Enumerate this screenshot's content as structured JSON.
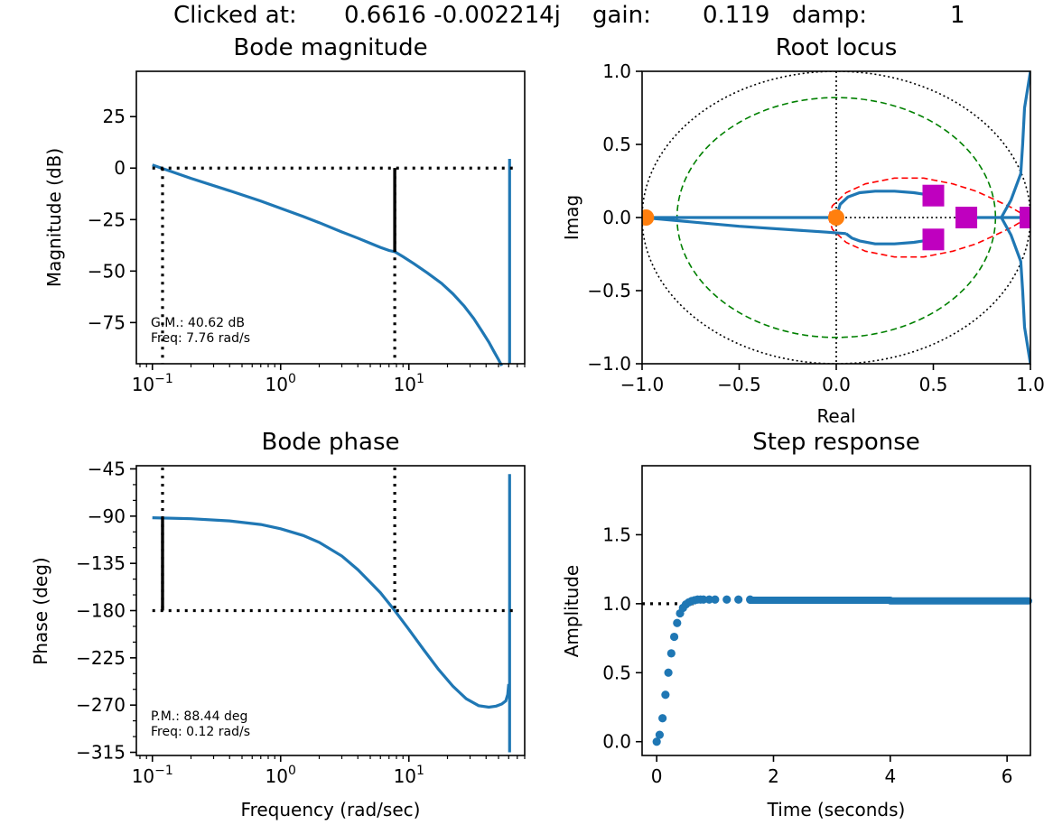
{
  "header": {
    "clicked_label": "Clicked at:",
    "clicked_value": "0.6616 -0.002214j",
    "gain_label": "gain:",
    "gain_value": "0.119",
    "damp_label": "damp:",
    "damp_value": "1"
  },
  "chart_data": [
    {
      "id": "bode_magnitude",
      "type": "line",
      "title": "Bode magnitude",
      "xlabel": "",
      "ylabel": "Magnitude (dB)",
      "xscale": "log",
      "xlim": [
        0.075,
        80
      ],
      "ylim": [
        -95,
        47
      ],
      "yticks": [
        {
          "v": 25,
          "label": "25"
        },
        {
          "v": 0,
          "label": "0"
        },
        {
          "v": -25,
          "label": "−25"
        },
        {
          "v": -50,
          "label": "−50"
        },
        {
          "v": -75,
          "label": "−75"
        }
      ],
      "xticks": [
        {
          "v": 0.1,
          "label": "10",
          "sup": "−1"
        },
        {
          "v": 1,
          "label": "10",
          "sup": "0"
        },
        {
          "v": 10,
          "label": "10",
          "sup": "1"
        }
      ],
      "series": [
        {
          "name": "magnitude",
          "x": [
            0.1,
            0.2,
            0.4,
            0.7,
            1.0,
            1.5,
            2.0,
            3.0,
            4.0,
            5.0,
            6.0,
            7.0,
            7.76,
            9.0,
            11.0,
            14.0,
            18.0,
            22.0,
            27.0,
            32.0,
            37.0,
            42.0,
            46.0,
            50.0,
            53.0
          ],
          "y": [
            1.5,
            -5,
            -11,
            -16,
            -19.5,
            -23.5,
            -26.5,
            -31,
            -34,
            -36.5,
            -38.5,
            -40,
            -40.62,
            -43,
            -46.5,
            -51,
            -56,
            -61,
            -67,
            -73,
            -79,
            -84.5,
            -89,
            -93,
            -96
          ]
        }
      ],
      "resonance_line": {
        "x": 61,
        "y_top": 4.5,
        "y_bottom": -95
      },
      "reference_lines": [
        {
          "orientation": "h",
          "value": 0,
          "style": "dotted"
        },
        {
          "orientation": "v",
          "value": 0.12,
          "style": "dotted"
        },
        {
          "orientation": "v",
          "value": 7.76,
          "style": "dotted"
        }
      ],
      "margin_bar": {
        "x": 7.76,
        "y_from": 0,
        "y_to": -40.62
      },
      "annotation": {
        "line1": "G.M.: 40.62 dB",
        "line2": "Freq: 7.76 rad/s"
      }
    },
    {
      "id": "root_locus",
      "type": "line",
      "title": "Root locus",
      "xlabel": "Real",
      "ylabel": "Imag",
      "xlim": [
        -1.0,
        1.0
      ],
      "ylim": [
        -1.0,
        1.0
      ],
      "xticks": [
        {
          "v": -1.0,
          "label": "−1.0"
        },
        {
          "v": -0.5,
          "label": "−0.5"
        },
        {
          "v": 0.0,
          "label": "0.0"
        },
        {
          "v": 0.5,
          "label": "0.5"
        },
        {
          "v": 1.0,
          "label": "1.0"
        }
      ],
      "yticks": [
        {
          "v": 1.0,
          "label": "1.0"
        },
        {
          "v": 0.5,
          "label": "0.5"
        },
        {
          "v": 0.0,
          "label": "0.0"
        },
        {
          "v": -0.5,
          "label": "−0.5"
        },
        {
          "v": -1.0,
          "label": "−1.0"
        }
      ],
      "unit_circle": {
        "radius": 1.0,
        "style": "dotted black"
      },
      "green_circle": {
        "radius": 0.82,
        "style": "dashed green"
      },
      "red_contour": {
        "x": [
          -0.04,
          -0.02,
          0.05,
          0.15,
          0.3,
          0.45,
          0.6,
          0.72,
          0.82,
          0.9,
          0.95,
          0.97,
          0.95,
          0.9,
          0.82,
          0.72,
          0.6,
          0.45,
          0.3,
          0.15,
          0.05,
          -0.02,
          -0.04
        ],
        "y": [
          0.0,
          0.08,
          0.17,
          0.23,
          0.27,
          0.27,
          0.23,
          0.18,
          0.12,
          0.07,
          0.03,
          0.0,
          -0.03,
          -0.07,
          -0.12,
          -0.18,
          -0.23,
          -0.27,
          -0.27,
          -0.23,
          -0.17,
          -0.08,
          0.0
        ]
      },
      "branches": [
        {
          "name": "real-axis-left",
          "x": [
            -0.97,
            0.0
          ],
          "y": [
            0.0,
            0.0
          ]
        },
        {
          "name": "lower-left",
          "x": [
            -0.97,
            -0.5,
            -0.05,
            0.05
          ],
          "y": [
            -0.003,
            -0.06,
            -0.1,
            -0.11
          ]
        },
        {
          "name": "upper",
          "x": [
            0.0,
            0.02,
            0.06,
            0.12,
            0.2,
            0.3,
            0.4,
            0.5
          ],
          "y": [
            0.0,
            0.09,
            0.14,
            0.17,
            0.18,
            0.18,
            0.17,
            0.15
          ]
        },
        {
          "name": "lower",
          "x": [
            0.05,
            0.08,
            0.12,
            0.2,
            0.3,
            0.4,
            0.5
          ],
          "y": [
            -0.11,
            -0.14,
            -0.16,
            -0.18,
            -0.18,
            -0.17,
            -0.15
          ]
        },
        {
          "name": "real-axis-right",
          "x": [
            0.67,
            1.0
          ],
          "y": [
            0.0,
            0.0
          ]
        },
        {
          "name": "right-lobe",
          "x": [
            1.0,
            0.97,
            0.96,
            0.95,
            0.9,
            0.85,
            0.9,
            0.95,
            0.96,
            0.97,
            1.0
          ],
          "y": [
            1.0,
            0.75,
            0.5,
            0.3,
            0.12,
            0.0,
            -0.12,
            -0.3,
            -0.5,
            -0.75,
            -1.0
          ]
        }
      ],
      "poles": {
        "x": [
          -0.98,
          0.0
        ],
        "y": [
          0.0,
          0.0
        ],
        "color": "#ff7f0e"
      },
      "selected": {
        "x": [
          0.5,
          0.5,
          0.67,
          1.0
        ],
        "y": [
          0.15,
          -0.15,
          0.0,
          0.0
        ],
        "color": "#bf00bf"
      }
    },
    {
      "id": "bode_phase",
      "type": "line",
      "title": "Bode phase",
      "xlabel": "Frequency (rad/sec)",
      "ylabel": "Phase (deg)",
      "xscale": "log",
      "xlim": [
        0.075,
        80
      ],
      "ylim": [
        -318,
        -42
      ],
      "yticks": [
        {
          "v": -45,
          "label": "−45"
        },
        {
          "v": -90,
          "label": "−90"
        },
        {
          "v": -135,
          "label": "−135"
        },
        {
          "v": -180,
          "label": "−180"
        },
        {
          "v": -225,
          "label": "−225"
        },
        {
          "v": -270,
          "label": "−270"
        },
        {
          "v": -315,
          "label": "−315"
        }
      ],
      "xticks": [
        {
          "v": 0.1,
          "label": "10",
          "sup": "−1"
        },
        {
          "v": 1,
          "label": "10",
          "sup": "0"
        },
        {
          "v": 10,
          "label": "10",
          "sup": "1"
        }
      ],
      "series": [
        {
          "name": "phase",
          "x": [
            0.1,
            0.2,
            0.4,
            0.7,
            1.0,
            1.5,
            2.0,
            3.0,
            4.0,
            5.0,
            6.0,
            7.76,
            10.0,
            13.0,
            17.0,
            22.0,
            28.0,
            35.0,
            42.0,
            48.0,
            53.0,
            57.0,
            59.0,
            60.0
          ],
          "y": [
            -91.5,
            -92.5,
            -94.5,
            -98,
            -102,
            -108.5,
            -115,
            -128,
            -141,
            -153,
            -163,
            -180,
            -198,
            -217,
            -236,
            -252,
            -264,
            -270.5,
            -272,
            -271,
            -269,
            -266,
            -260,
            -250
          ]
        }
      ],
      "resonance_line": {
        "x": 61,
        "y_top": -50,
        "y_bottom": -315
      },
      "reference_lines": [
        {
          "orientation": "h",
          "value": -180,
          "style": "dotted"
        },
        {
          "orientation": "v",
          "value": 0.12,
          "style": "dotted"
        },
        {
          "orientation": "v",
          "value": 7.76,
          "style": "dotted"
        }
      ],
      "margin_bar": {
        "x": 0.12,
        "y_from": -91.56,
        "y_to": -180
      },
      "annotation": {
        "line1": "P.M.: 88.44 deg",
        "line2": "Freq: 0.12 rad/s"
      }
    },
    {
      "id": "step_response",
      "type": "scatter",
      "title": "Step response",
      "xlabel": "Time (seconds)",
      "ylabel": "Amplitude",
      "xlim": [
        -0.25,
        6.4
      ],
      "ylim": [
        -0.1,
        2.0
      ],
      "xticks": [
        {
          "v": 0,
          "label": "0"
        },
        {
          "v": 2,
          "label": "2"
        },
        {
          "v": 4,
          "label": "4"
        },
        {
          "v": 6,
          "label": "6"
        }
      ],
      "yticks": [
        {
          "v": 0.0,
          "label": "0.0"
        },
        {
          "v": 0.5,
          "label": "0.5"
        },
        {
          "v": 1.0,
          "label": "1.0"
        },
        {
          "v": 1.5,
          "label": "1.5"
        }
      ],
      "reference": {
        "y": 1.0,
        "x_from": -0.25,
        "x_to": 0.7,
        "style": "dotted"
      },
      "series": [
        {
          "name": "step",
          "x": [
            0.0,
            0.05,
            0.1,
            0.15,
            0.2,
            0.25,
            0.3,
            0.35,
            0.4,
            0.45,
            0.5,
            0.55,
            0.6,
            0.65,
            0.7,
            0.75,
            0.8,
            0.9,
            1.0,
            1.2,
            1.4,
            1.6
          ],
          "y": [
            0.0,
            0.05,
            0.17,
            0.34,
            0.5,
            0.64,
            0.76,
            0.86,
            0.93,
            0.97,
            0.995,
            1.01,
            1.02,
            1.025,
            1.03,
            1.03,
            1.03,
            1.03,
            1.03,
            1.03,
            1.03,
            1.03
          ]
        }
      ],
      "tail": {
        "x_from": 1.6,
        "x_to": 6.4,
        "y": 1.025,
        "y_end": 1.02
      }
    }
  ]
}
